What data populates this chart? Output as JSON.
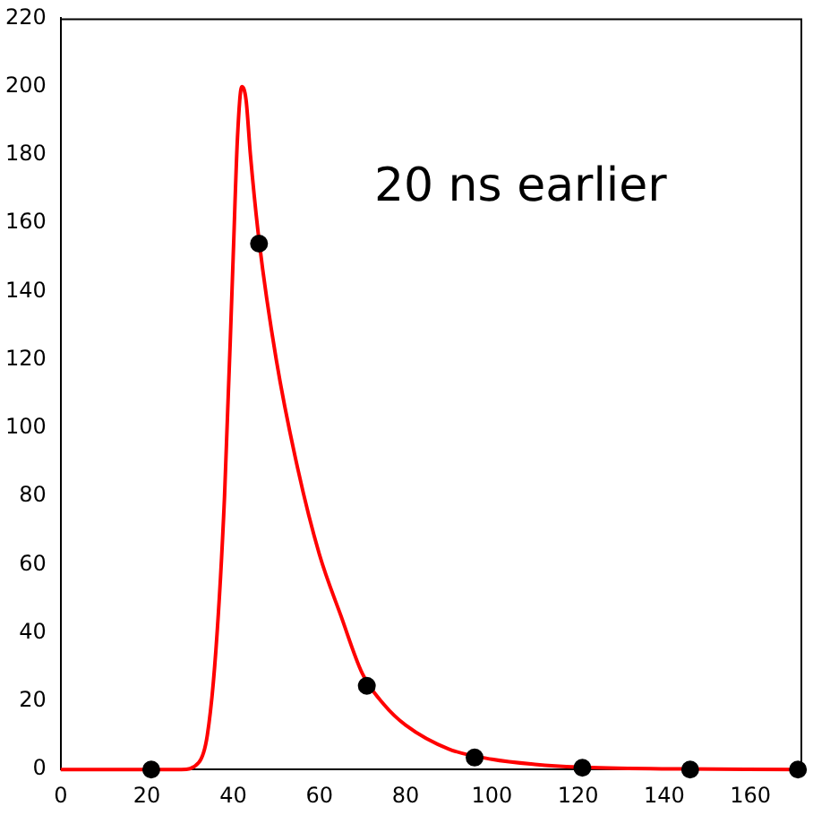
{
  "chart_data": {
    "type": "line",
    "xlim": [
      0,
      172
    ],
    "xticks": [
      0,
      20,
      40,
      60,
      80,
      100,
      120,
      140,
      160
    ],
    "ylim": [
      0,
      220
    ],
    "yticks": [
      0,
      20,
      40,
      60,
      80,
      100,
      120,
      140,
      160,
      180,
      200,
      220
    ],
    "grid": false,
    "legend": false,
    "annotations": [
      "20 ns earlier"
    ],
    "series": [
      {
        "color": "#ff0000",
        "marker": "none",
        "x": [
          0,
          28,
          32,
          34,
          36,
          38,
          40,
          41,
          42,
          43,
          44,
          46,
          50,
          55,
          60,
          65,
          70,
          75,
          80,
          90,
          100,
          110,
          120,
          140,
          172
        ],
        "values": [
          0,
          0,
          2,
          10,
          35,
          80,
          150,
          185,
          200,
          196,
          180,
          155,
          120,
          88,
          63,
          45,
          28,
          19,
          13,
          6,
          3,
          1.5,
          0.7,
          0.2,
          0
        ]
      },
      {
        "type": "scatter",
        "color": "#000000",
        "marker": "circle",
        "x": [
          21,
          46,
          71,
          96,
          121,
          146,
          171
        ],
        "values": [
          0,
          154,
          24.5,
          3.5,
          0.5,
          0,
          0
        ]
      }
    ]
  }
}
